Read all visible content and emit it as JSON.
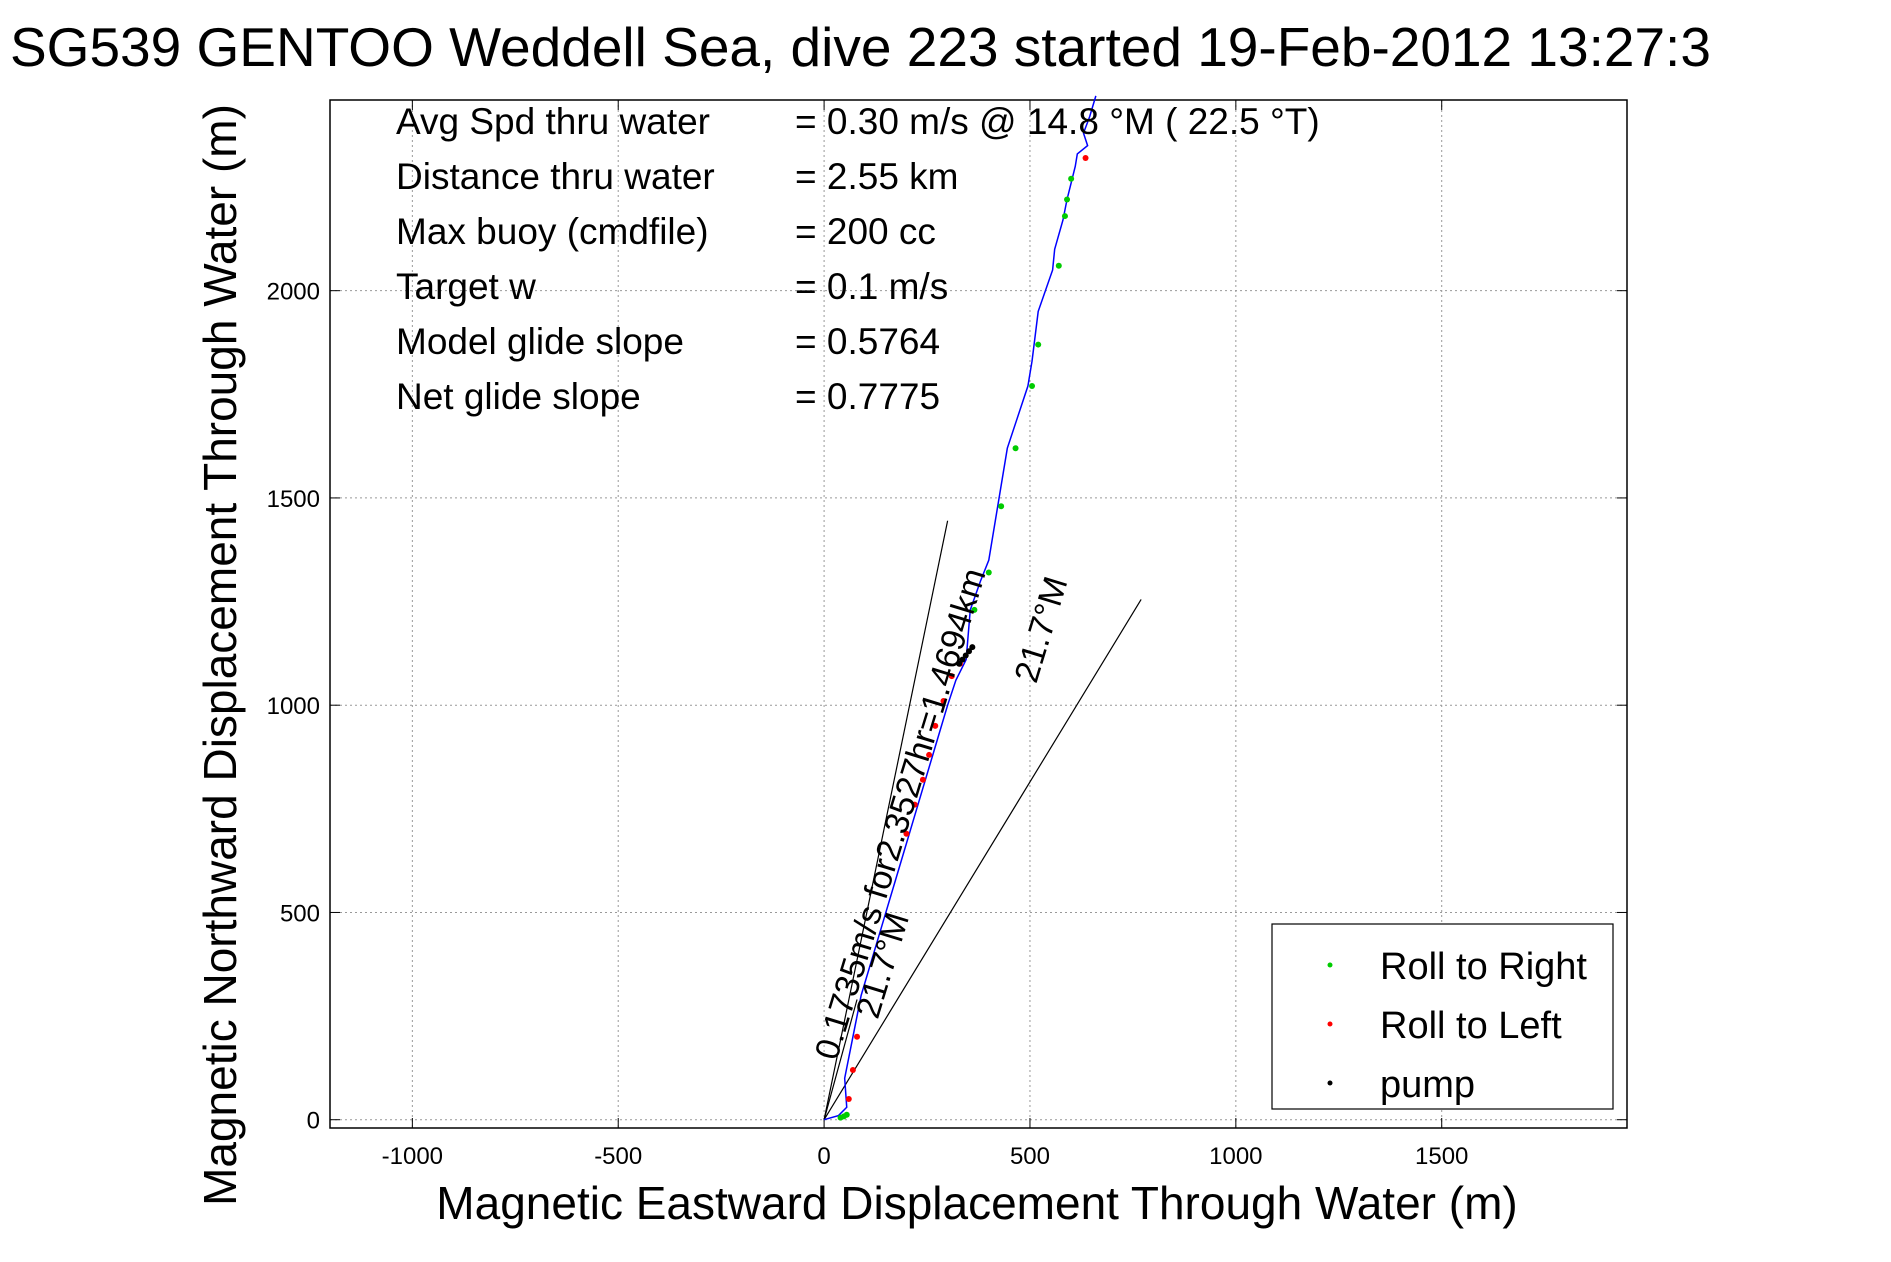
{
  "chart_data": {
    "type": "line",
    "title": "SG539 GENTOO Weddell Sea, dive 223 started 19-Feb-2012 13:27:3",
    "xlabel": "Magnetic Eastward Displacement Through Water (m)",
    "ylabel": "Magnetic Northward Displacement Through Water (m)",
    "xlim": [
      -1200,
      1950
    ],
    "ylim": [
      -20,
      2460
    ],
    "xticks": [
      -1000,
      -500,
      0,
      500,
      1000,
      1500
    ],
    "yticks": [
      0,
      500,
      1000,
      1500,
      2000
    ],
    "grid": true,
    "legend_position": "bottom-right",
    "legend": [
      {
        "label": "Roll to Right",
        "color": "#00cc00"
      },
      {
        "label": "Roll to Left",
        "color": "#ff0000"
      },
      {
        "label": "pump",
        "color": "#000000"
      }
    ],
    "stats": [
      {
        "label": "Avg Spd thru water",
        "value": "=  0.30 m/s @   14.8 °M ( 22.5 °T)"
      },
      {
        "label": "Distance thru water",
        "value": "=  2.55 km"
      },
      {
        "label": "Max buoy (cmdfile)",
        "value": "= 200 cc"
      },
      {
        "label": "Target w",
        "value": "= 0.1 m/s"
      },
      {
        "label": "Model glide slope",
        "value": "= 0.5764"
      },
      {
        "label": "Net glide slope",
        "value": "= 0.7775"
      }
    ],
    "series": [
      {
        "color": "#0000ff",
        "x": [
          0,
          35,
          55,
          50,
          70,
          90,
          120,
          150,
          180,
          210,
          240,
          270,
          300,
          320,
          345,
          355,
          380,
          400,
          420,
          445,
          465,
          495,
          505,
          520,
          555,
          560,
          580,
          590,
          600,
          610,
          615,
          640,
          630,
          645,
          660
        ],
        "y": [
          0,
          10,
          30,
          100,
          200,
          300,
          400,
          500,
          600,
          700,
          800,
          900,
          1000,
          1060,
          1110,
          1230,
          1300,
          1350,
          1470,
          1620,
          1680,
          1770,
          1830,
          1950,
          2050,
          2100,
          2170,
          2220,
          2260,
          2300,
          2330,
          2350,
          2380,
          2420,
          2470
        ]
      }
    ],
    "roll_right_points": {
      "x": [
        40,
        48,
        55,
        365,
        400,
        430,
        465,
        505,
        520,
        570,
        585,
        590,
        600
      ],
      "y": [
        5,
        8,
        12,
        1230,
        1320,
        1480,
        1620,
        1770,
        1870,
        2060,
        2180,
        2220,
        2270
      ]
    },
    "roll_left_points": {
      "x": [
        60,
        70,
        80,
        200,
        220,
        240,
        255,
        270,
        290,
        310,
        330,
        635
      ],
      "y": [
        50,
        120,
        200,
        690,
        760,
        820,
        880,
        950,
        1010,
        1070,
        1100,
        2320
      ]
    },
    "pump_points": {
      "x": [
        328,
        336,
        344,
        352,
        360
      ],
      "y": [
        1100,
        1110,
        1120,
        1130,
        1140
      ]
    },
    "ref_lines": [
      {
        "x": [
          0,
          300
        ],
        "y": [
          0,
          1445
        ]
      },
      {
        "x": [
          0,
          770
        ],
        "y": [
          0,
          1255
        ]
      },
      {
        "x": [
          0,
          80
        ],
        "y": [
          0,
          290
        ]
      }
    ],
    "annotations": [
      {
        "text": "0.1735m/s for2.3527hr=1.4694km",
        "x": 30,
        "y": 140,
        "angle": -73
      },
      {
        "text": "21.7°M",
        "x": 515,
        "y": 1050,
        "angle": -73
      },
      {
        "text": "21.7°M",
        "x": 130,
        "y": 240,
        "angle": -73
      }
    ]
  }
}
